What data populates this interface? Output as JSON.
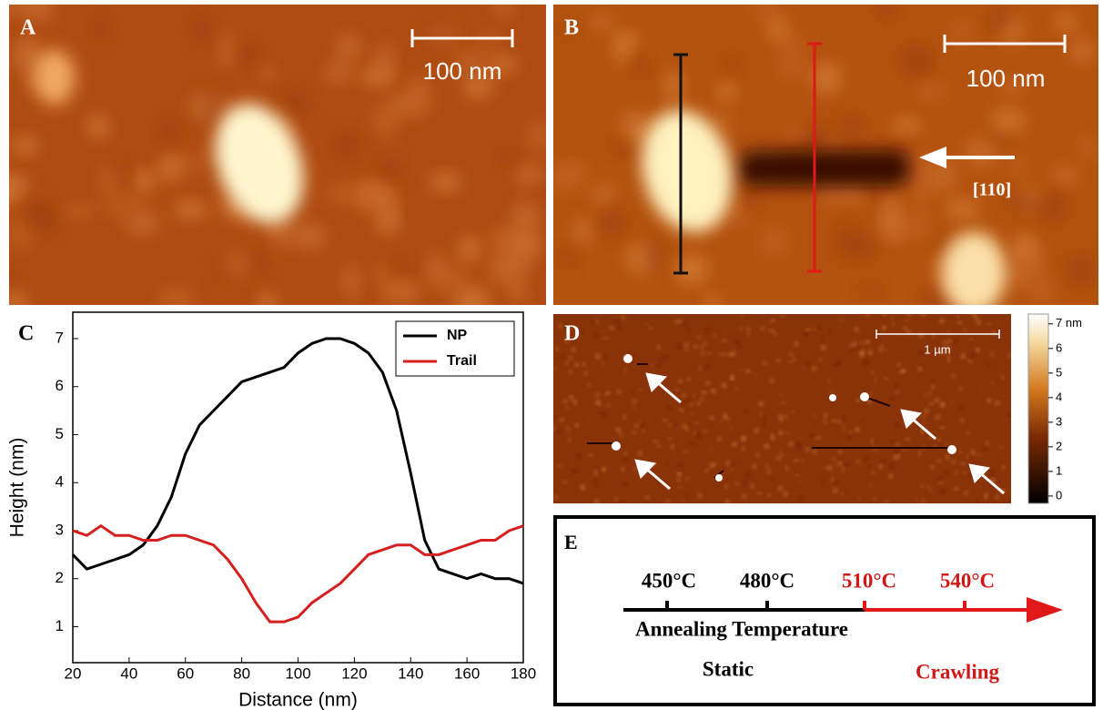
{
  "panel_a": {
    "label": "A",
    "scale": "100 nm"
  },
  "panel_b": {
    "label": "B",
    "scale": "100 nm",
    "direction": "[110]"
  },
  "panel_c": {
    "label": "C"
  },
  "chart_data": {
    "type": "line",
    "xlabel": "Distance (nm)",
    "ylabel": "Height (nm)",
    "x": [
      20,
      25,
      30,
      35,
      40,
      45,
      50,
      55,
      60,
      65,
      70,
      75,
      80,
      85,
      90,
      95,
      100,
      105,
      110,
      115,
      120,
      125,
      130,
      135,
      140,
      145,
      150,
      155,
      160,
      165,
      170,
      175,
      180
    ],
    "series": [
      {
        "name": "NP",
        "color": "#000000",
        "values": [
          2.5,
          2.2,
          2.3,
          2.4,
          2.5,
          2.7,
          3.1,
          3.7,
          4.6,
          5.2,
          5.5,
          5.8,
          6.1,
          6.2,
          6.3,
          6.4,
          6.7,
          6.9,
          7.0,
          7.0,
          6.9,
          6.7,
          6.3,
          5.5,
          4.2,
          2.8,
          2.2,
          2.1,
          2.0,
          2.1,
          2.0,
          2.0,
          1.9
        ]
      },
      {
        "name": "Trail",
        "color": "#d62020",
        "values": [
          3.0,
          2.9,
          3.1,
          2.9,
          2.9,
          2.8,
          2.8,
          2.9,
          2.9,
          2.8,
          2.7,
          2.4,
          2.0,
          1.5,
          1.1,
          1.1,
          1.2,
          1.5,
          1.7,
          1.9,
          2.2,
          2.5,
          2.6,
          2.7,
          2.7,
          2.5,
          2.5,
          2.6,
          2.7,
          2.8,
          2.8,
          3.0,
          3.1
        ]
      }
    ],
    "xlim": [
      20,
      180
    ],
    "ylim": [
      0.25,
      7.55
    ],
    "xticks": [
      20,
      40,
      60,
      80,
      100,
      120,
      140,
      160,
      180
    ],
    "yticks": [
      1,
      2,
      3,
      4,
      5,
      6,
      7
    ],
    "legend": "top-right"
  },
  "panel_d": {
    "label": "D",
    "scale": "1 µm",
    "colorbar_lim": [
      -0.3,
      7.4
    ],
    "colorbar_ticks": [
      {
        "value": 7,
        "label": "7 nm"
      },
      6,
      5,
      4,
      3,
      2,
      1,
      0
    ]
  },
  "panel_e": {
    "label": "E",
    "temperatures": [
      "450°C",
      "480°C",
      "510°C",
      "540°C"
    ],
    "axis_title": "Annealing Temperature",
    "static": "Static",
    "crawling": "Crawling"
  }
}
